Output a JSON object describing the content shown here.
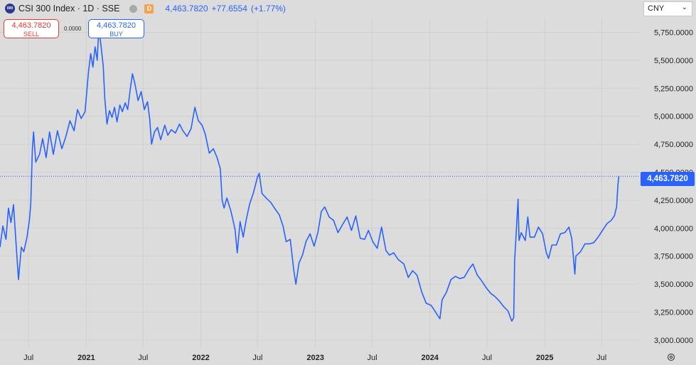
{
  "header": {
    "logo_text": "000",
    "symbol": "CSI 300 Index · 1D · SSE",
    "badge": "D",
    "last": "4,463.7820",
    "change": "+77.6554",
    "change_pct": "(+1.77%)"
  },
  "trade": {
    "sell_price": "4,463.7820",
    "sell_label": "SELL",
    "spread": "0.0000",
    "buy_price": "4,463.7820",
    "buy_label": "BUY"
  },
  "currency": "CNY",
  "price_tag": "4,463.7820",
  "colors": {
    "line": "#2962ff",
    "background": "#dcdcdc",
    "sell": "#e53935",
    "buy": "#2962ff"
  },
  "chart_data": {
    "type": "line",
    "title": "CSI 300 Index · 1D · SSE",
    "xlabel": "",
    "ylabel": "",
    "ylim": [
      2930,
      5880
    ],
    "y_ticks": [
      3000,
      3250,
      3500,
      3750,
      4000,
      4250,
      4500,
      4750,
      5000,
      5250,
      5500,
      5750
    ],
    "y_tick_labels": [
      "3,000.0000",
      "3,250.0000",
      "3,500.0000",
      "3,750.0000",
      "4,000.0000",
      "4,250.0000",
      "4,500.0000",
      "4,750.0000",
      "5,000.0000",
      "5,250.0000",
      "5,500.0000",
      "5,750.0000"
    ],
    "xlim": [
      "2020-04-01",
      "2025-10-31"
    ],
    "x_ticks": [
      {
        "date": "2020-07-01",
        "label": "Jul",
        "bold": false
      },
      {
        "date": "2021-01-01",
        "label": "2021",
        "bold": true
      },
      {
        "date": "2021-07-01",
        "label": "Jul",
        "bold": false
      },
      {
        "date": "2022-01-01",
        "label": "2022",
        "bold": true
      },
      {
        "date": "2022-07-01",
        "label": "Jul",
        "bold": false
      },
      {
        "date": "2023-01-01",
        "label": "2023",
        "bold": true
      },
      {
        "date": "2023-07-01",
        "label": "Jul",
        "bold": false
      },
      {
        "date": "2024-01-01",
        "label": "2024",
        "bold": true
      },
      {
        "date": "2024-07-01",
        "label": "Jul",
        "bold": false
      },
      {
        "date": "2025-01-01",
        "label": "2025",
        "bold": true
      },
      {
        "date": "2025-07-01",
        "label": "Jul",
        "bold": false
      }
    ],
    "last_value": 4463.782,
    "series": [
      {
        "points": [
          [
            "2020-04-01",
            3830
          ],
          [
            "2020-04-10",
            4020
          ],
          [
            "2020-04-20",
            3900
          ],
          [
            "2020-04-28",
            4180
          ],
          [
            "2020-05-06",
            4050
          ],
          [
            "2020-05-14",
            4210
          ],
          [
            "2020-05-22",
            3870
          ],
          [
            "2020-05-30",
            3540
          ],
          [
            "2020-06-08",
            3830
          ],
          [
            "2020-06-16",
            3790
          ],
          [
            "2020-06-26",
            3920
          ],
          [
            "2020-07-04",
            4080
          ],
          [
            "2020-07-08",
            4220
          ],
          [
            "2020-07-13",
            4700
          ],
          [
            "2020-07-17",
            4860
          ],
          [
            "2020-07-24",
            4590
          ],
          [
            "2020-08-05",
            4660
          ],
          [
            "2020-08-15",
            4800
          ],
          [
            "2020-08-26",
            4630
          ],
          [
            "2020-09-06",
            4860
          ],
          [
            "2020-09-18",
            4660
          ],
          [
            "2020-10-01",
            4870
          ],
          [
            "2020-10-15",
            4710
          ],
          [
            "2020-10-28",
            4820
          ],
          [
            "2020-11-10",
            4960
          ],
          [
            "2020-11-23",
            4870
          ],
          [
            "2020-12-04",
            5060
          ],
          [
            "2020-12-16",
            4980
          ],
          [
            "2020-12-28",
            5040
          ],
          [
            "2021-01-08",
            5400
          ],
          [
            "2021-01-15",
            5560
          ],
          [
            "2021-01-22",
            5440
          ],
          [
            "2021-01-29",
            5620
          ],
          [
            "2021-02-05",
            5500
          ],
          [
            "2021-02-10",
            5800
          ],
          [
            "2021-02-18",
            5600
          ],
          [
            "2021-02-24",
            5450
          ],
          [
            "2021-03-01",
            5160
          ],
          [
            "2021-03-08",
            4930
          ],
          [
            "2021-03-16",
            5050
          ],
          [
            "2021-03-24",
            4990
          ],
          [
            "2021-04-01",
            5080
          ],
          [
            "2021-04-09",
            4950
          ],
          [
            "2021-04-18",
            5100
          ],
          [
            "2021-04-26",
            5040
          ],
          [
            "2021-05-05",
            5120
          ],
          [
            "2021-05-13",
            5060
          ],
          [
            "2021-05-21",
            5240
          ],
          [
            "2021-05-28",
            5380
          ],
          [
            "2021-06-05",
            5290
          ],
          [
            "2021-06-15",
            5140
          ],
          [
            "2021-06-25",
            5220
          ],
          [
            "2021-07-05",
            5060
          ],
          [
            "2021-07-15",
            5130
          ],
          [
            "2021-07-22",
            4980
          ],
          [
            "2021-07-28",
            4750
          ],
          [
            "2021-08-06",
            4860
          ],
          [
            "2021-08-16",
            4900
          ],
          [
            "2021-08-26",
            4790
          ],
          [
            "2021-09-08",
            4920
          ],
          [
            "2021-09-18",
            4830
          ],
          [
            "2021-09-29",
            4880
          ],
          [
            "2021-10-12",
            4850
          ],
          [
            "2021-10-25",
            4930
          ],
          [
            "2021-11-05",
            4870
          ],
          [
            "2021-11-18",
            4820
          ],
          [
            "2021-12-01",
            4890
          ],
          [
            "2021-12-13",
            5080
          ],
          [
            "2021-12-24",
            4960
          ],
          [
            "2022-01-05",
            4920
          ],
          [
            "2022-01-15",
            4840
          ],
          [
            "2022-01-28",
            4670
          ],
          [
            "2022-02-10",
            4710
          ],
          [
            "2022-02-22",
            4630
          ],
          [
            "2022-03-04",
            4530
          ],
          [
            "2022-03-10",
            4250
          ],
          [
            "2022-03-16",
            4180
          ],
          [
            "2022-03-25",
            4270
          ],
          [
            "2022-04-07",
            4150
          ],
          [
            "2022-04-20",
            3990
          ],
          [
            "2022-04-27",
            3780
          ],
          [
            "2022-05-06",
            4060
          ],
          [
            "2022-05-16",
            3920
          ],
          [
            "2022-05-26",
            4080
          ],
          [
            "2022-06-06",
            4220
          ],
          [
            "2022-06-17",
            4310
          ],
          [
            "2022-06-30",
            4450
          ],
          [
            "2022-07-06",
            4490
          ],
          [
            "2022-07-15",
            4310
          ],
          [
            "2022-07-28",
            4270
          ],
          [
            "2022-08-12",
            4230
          ],
          [
            "2022-08-26",
            4170
          ],
          [
            "2022-09-08",
            4120
          ],
          [
            "2022-09-20",
            4020
          ],
          [
            "2022-09-30",
            3880
          ],
          [
            "2022-10-13",
            3900
          ],
          [
            "2022-10-24",
            3630
          ],
          [
            "2022-10-31",
            3500
          ],
          [
            "2022-11-10",
            3690
          ],
          [
            "2022-11-21",
            3760
          ],
          [
            "2022-12-02",
            3880
          ],
          [
            "2022-12-15",
            3950
          ],
          [
            "2022-12-28",
            3840
          ],
          [
            "2023-01-09",
            3960
          ],
          [
            "2023-01-20",
            4150
          ],
          [
            "2023-01-31",
            4190
          ],
          [
            "2023-02-14",
            4100
          ],
          [
            "2023-02-28",
            4070
          ],
          [
            "2023-03-14",
            3960
          ],
          [
            "2023-03-28",
            4030
          ],
          [
            "2023-04-12",
            4100
          ],
          [
            "2023-04-26",
            3980
          ],
          [
            "2023-05-10",
            4110
          ],
          [
            "2023-05-24",
            3910
          ],
          [
            "2023-06-07",
            3900
          ],
          [
            "2023-06-19",
            3980
          ],
          [
            "2023-07-03",
            3880
          ],
          [
            "2023-07-17",
            3820
          ],
          [
            "2023-07-31",
            4010
          ],
          [
            "2023-08-14",
            3800
          ],
          [
            "2023-08-25",
            3760
          ],
          [
            "2023-09-08",
            3780
          ],
          [
            "2023-09-22",
            3720
          ],
          [
            "2023-10-10",
            3680
          ],
          [
            "2023-10-24",
            3560
          ],
          [
            "2023-11-07",
            3620
          ],
          [
            "2023-11-21",
            3580
          ],
          [
            "2023-12-06",
            3430
          ],
          [
            "2023-12-20",
            3330
          ],
          [
            "2024-01-05",
            3310
          ],
          [
            "2024-01-19",
            3250
          ],
          [
            "2024-02-02",
            3190
          ],
          [
            "2024-02-09",
            3360
          ],
          [
            "2024-02-23",
            3430
          ],
          [
            "2024-03-08",
            3540
          ],
          [
            "2024-03-22",
            3570
          ],
          [
            "2024-04-05",
            3550
          ],
          [
            "2024-04-19",
            3560
          ],
          [
            "2024-05-06",
            3640
          ],
          [
            "2024-05-17",
            3680
          ],
          [
            "2024-05-31",
            3580
          ],
          [
            "2024-06-14",
            3530
          ],
          [
            "2024-06-28",
            3470
          ],
          [
            "2024-07-12",
            3420
          ],
          [
            "2024-07-26",
            3390
          ],
          [
            "2024-08-09",
            3350
          ],
          [
            "2024-08-23",
            3300
          ],
          [
            "2024-09-06",
            3260
          ],
          [
            "2024-09-18",
            3170
          ],
          [
            "2024-09-24",
            3200
          ],
          [
            "2024-09-27",
            3710
          ],
          [
            "2024-10-08",
            4260
          ],
          [
            "2024-10-11",
            3890
          ],
          [
            "2024-10-18",
            3960
          ],
          [
            "2024-10-31",
            3890
          ],
          [
            "2024-11-08",
            4100
          ],
          [
            "2024-11-15",
            3920
          ],
          [
            "2024-11-29",
            3920
          ],
          [
            "2024-12-12",
            4010
          ],
          [
            "2024-12-25",
            3950
          ],
          [
            "2025-01-06",
            3780
          ],
          [
            "2025-01-13",
            3730
          ],
          [
            "2025-01-24",
            3850
          ],
          [
            "2025-02-07",
            3850
          ],
          [
            "2025-02-20",
            3950
          ],
          [
            "2025-03-06",
            3960
          ],
          [
            "2025-03-19",
            4010
          ],
          [
            "2025-03-28",
            3910
          ],
          [
            "2025-04-07",
            3590
          ],
          [
            "2025-04-10",
            3750
          ],
          [
            "2025-04-25",
            3790
          ],
          [
            "2025-05-09",
            3860
          ],
          [
            "2025-05-23",
            3860
          ],
          [
            "2025-06-06",
            3870
          ],
          [
            "2025-06-20",
            3920
          ],
          [
            "2025-07-04",
            3980
          ],
          [
            "2025-07-18",
            4040
          ],
          [
            "2025-08-01",
            4070
          ],
          [
            "2025-08-11",
            4110
          ],
          [
            "2025-08-18",
            4190
          ],
          [
            "2025-08-22",
            4380
          ],
          [
            "2025-08-25",
            4463.782
          ]
        ]
      }
    ]
  }
}
